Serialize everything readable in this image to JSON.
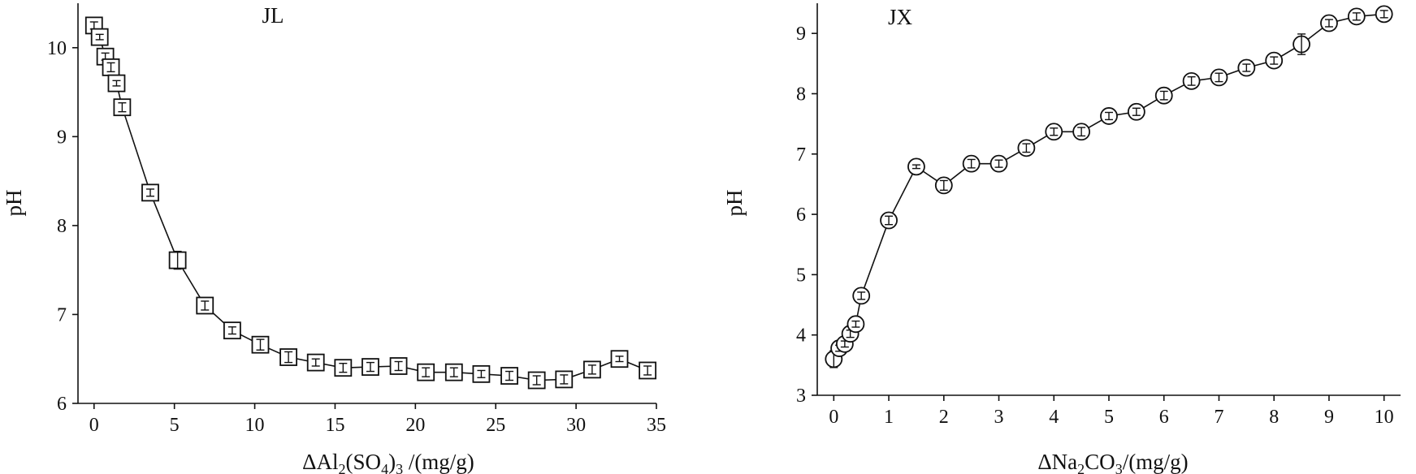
{
  "chart_data": [
    {
      "type": "line",
      "marker": "square",
      "title": "JL",
      "xlabel_parts": [
        "ΔAl",
        "2",
        "(SO",
        "4",
        ")",
        "3",
        " /(mg/g)"
      ],
      "ylabel": "pH",
      "xlim": [
        -1,
        35
      ],
      "ylim": [
        6,
        10.5
      ],
      "xticks": [
        0,
        5,
        10,
        15,
        20,
        25,
        30,
        35
      ],
      "yticks": [
        6,
        7,
        8,
        9,
        10
      ],
      "series": [
        {
          "x": [
            0,
            0.35,
            0.7,
            1.05,
            1.4,
            1.75,
            3.5,
            5.2,
            6.9,
            8.6,
            10.35,
            12.1,
            13.8,
            15.5,
            17.2,
            18.95,
            20.65,
            22.4,
            24.1,
            25.85,
            27.55,
            29.25,
            31.0,
            32.7,
            34.45
          ],
          "y": [
            10.25,
            10.12,
            9.9,
            9.78,
            9.6,
            9.33,
            8.37,
            7.61,
            7.1,
            6.82,
            6.66,
            6.52,
            6.46,
            6.4,
            6.41,
            6.42,
            6.35,
            6.35,
            6.33,
            6.31,
            6.26,
            6.27,
            6.38,
            6.5,
            6.37
          ],
          "err": [
            0.04,
            0.03,
            0.04,
            0.05,
            0.03,
            0.05,
            0.04,
            0.1,
            0.05,
            0.04,
            0.06,
            0.06,
            0.04,
            0.05,
            0.05,
            0.05,
            0.05,
            0.05,
            0.04,
            0.05,
            0.05,
            0.05,
            0.05,
            0.03,
            0.05
          ]
        }
      ]
    },
    {
      "type": "line",
      "marker": "circle",
      "title": "JX",
      "xlabel_parts": [
        "ΔNa",
        "2",
        "CO",
        "3",
        "",
        "",
        "/(mg/g)"
      ],
      "ylabel": "pH",
      "xlim": [
        -0.3,
        10.3
      ],
      "ylim": [
        3,
        9.5
      ],
      "xticks": [
        0,
        1,
        2,
        3,
        4,
        5,
        6,
        7,
        8,
        9,
        10
      ],
      "yticks": [
        3,
        4,
        5,
        6,
        7,
        8,
        9
      ],
      "series": [
        {
          "x": [
            0,
            0.1,
            0.2,
            0.3,
            0.4,
            0.5,
            1.0,
            1.5,
            2.0,
            2.5,
            3.0,
            3.5,
            4.0,
            4.5,
            5.0,
            5.5,
            6.0,
            6.5,
            7.0,
            7.5,
            8.0,
            8.5,
            9.0,
            9.5,
            10.0
          ],
          "y": [
            3.6,
            3.78,
            3.85,
            4.02,
            4.18,
            4.65,
            5.9,
            6.79,
            6.48,
            6.84,
            6.84,
            7.1,
            7.37,
            7.37,
            7.63,
            7.7,
            7.97,
            8.21,
            8.27,
            8.43,
            8.55,
            8.82,
            9.17,
            9.28,
            9.32
          ],
          "err": [
            0.14,
            0.05,
            0.05,
            0.06,
            0.05,
            0.06,
            0.07,
            0.03,
            0.08,
            0.07,
            0.06,
            0.07,
            0.06,
            0.07,
            0.06,
            0.06,
            0.07,
            0.07,
            0.07,
            0.06,
            0.06,
            0.17,
            0.06,
            0.06,
            0.06
          ]
        }
      ]
    }
  ]
}
